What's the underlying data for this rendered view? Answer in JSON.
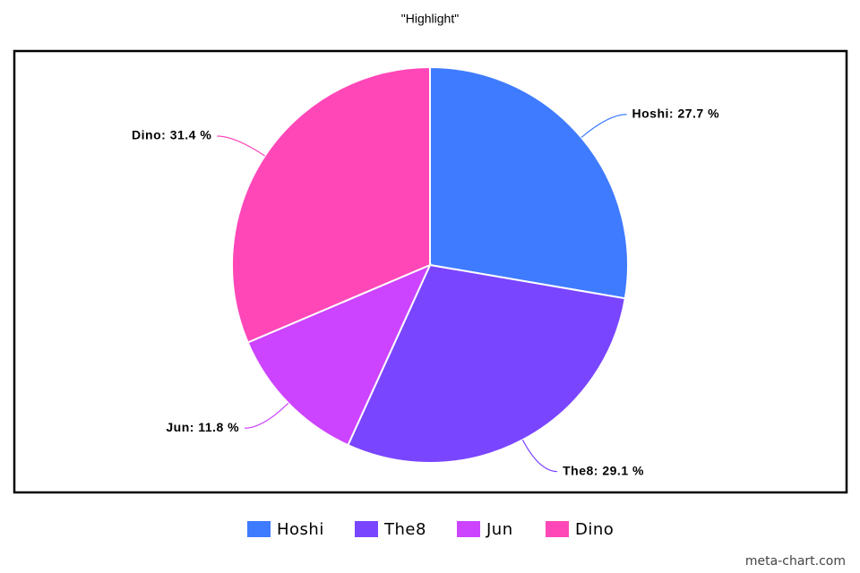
{
  "chart_data": {
    "type": "pie",
    "title": "\"Highlight\"",
    "categories": [
      "Hoshi",
      "The8",
      "Jun",
      "Dino"
    ],
    "values": [
      27.7,
      29.1,
      11.8,
      31.4
    ],
    "value_labels": [
      "Hoshi: 27.7 %",
      "The8: 29.1 %",
      "Jun: 11.8 %",
      "Dino: 31.4 %"
    ],
    "colors": [
      "#3f7bff",
      "#7a45ff",
      "#cc44ff",
      "#ff47b8"
    ],
    "credit": "meta-chart.com"
  }
}
